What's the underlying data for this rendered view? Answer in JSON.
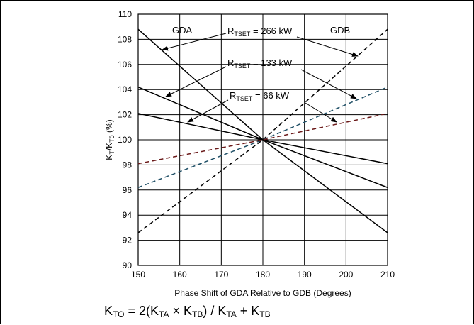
{
  "chart_data": {
    "type": "line",
    "xlabel": "Phase Shift of GDA Relative to GDB (Degrees)",
    "ylabel": {
      "base": "K",
      "sub1": "T",
      "mid": "/K",
      "sub2": "T0",
      "tail": " (%)"
    },
    "xlim": [
      150,
      210
    ],
    "ylim": [
      90,
      110
    ],
    "x_ticks": [
      150,
      160,
      170,
      180,
      190,
      200,
      210
    ],
    "y_ticks": [
      90,
      92,
      94,
      96,
      98,
      100,
      102,
      104,
      106,
      108,
      110
    ],
    "grid": true,
    "region_labels": [
      "GDA",
      "GDB"
    ],
    "annotations": [
      {
        "pre": "R",
        "sub": "TSET",
        "post": " = 266 kW"
      },
      {
        "pre": "R",
        "sub": "TSET",
        "post": " = 133 kW"
      },
      {
        "pre": "R",
        "sub": "TSET",
        "post": " = 66 kW"
      }
    ],
    "series": [
      {
        "style": "solid",
        "color": "#000000",
        "x": [
          150,
          180,
          210
        ],
        "y": [
          108.8,
          100,
          92.6
        ]
      },
      {
        "style": "solid",
        "color": "#000000",
        "x": [
          150,
          180,
          210
        ],
        "y": [
          104.2,
          100,
          96.2
        ]
      },
      {
        "style": "solid",
        "color": "#000000",
        "x": [
          150,
          180,
          210
        ],
        "y": [
          102.1,
          100,
          98.1
        ]
      },
      {
        "style": "dashed",
        "color": "#000000",
        "x": [
          150,
          180,
          210
        ],
        "y": [
          92.6,
          100,
          108.8
        ]
      },
      {
        "style": "dashed",
        "color": "#1f4f66",
        "x": [
          150,
          180,
          210
        ],
        "y": [
          96.2,
          100,
          104.2
        ]
      },
      {
        "style": "dashed",
        "color": "#6b1a1a",
        "x": [
          150,
          180,
          210
        ],
        "y": [
          98.1,
          100,
          102.1
        ]
      }
    ]
  },
  "formula": {
    "lhs": "K",
    "lhs_sub": "TO",
    "eq": " = 2(K",
    "a_sub": "TA",
    "times": " × K",
    "b_sub": "TB",
    "div": ") / K",
    "c_sub": "TA",
    "plus": " + K",
    "d_sub": "TB"
  }
}
